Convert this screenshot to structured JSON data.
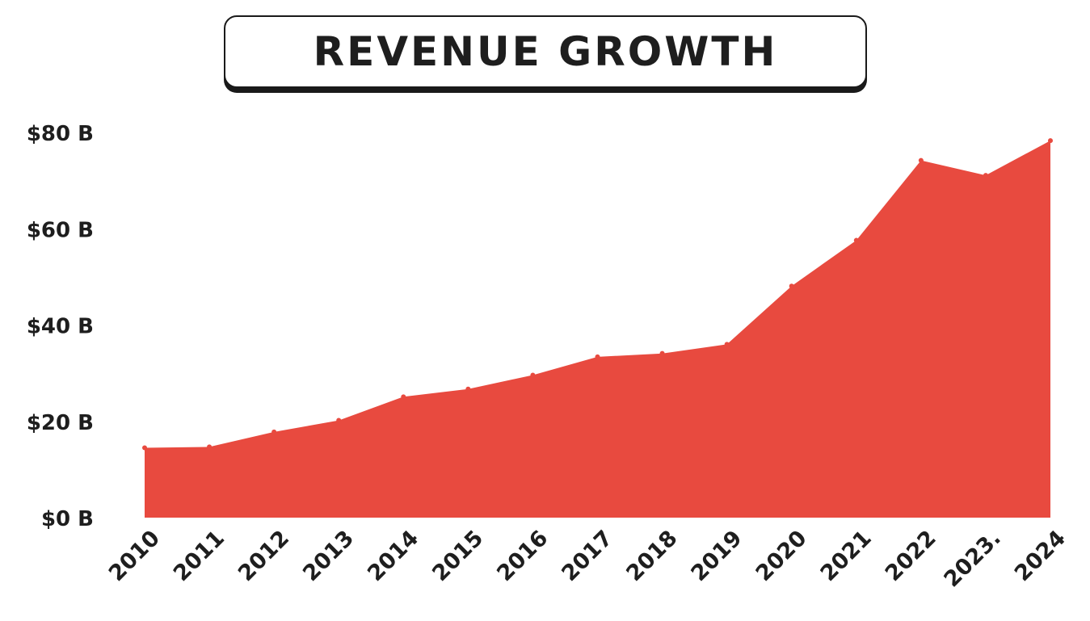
{
  "chart_data": {
    "type": "area",
    "title": "REVENUE GROWTH",
    "xlabel": "",
    "ylabel": "",
    "categories": [
      "2010",
      "2011",
      "2012",
      "2013",
      "2014",
      "2015",
      "2016",
      "2017",
      "2018",
      "2019",
      "2020",
      "2021",
      "2022",
      "2023.",
      "2024"
    ],
    "values": [
      14.5,
      14.7,
      17.8,
      20.2,
      25.1,
      26.7,
      29.6,
      33.4,
      34.1,
      36.0,
      48.1,
      57.6,
      74.2,
      71.1,
      78.3
    ],
    "y_ticks": [
      "$0 B",
      "$20 B",
      "$40 B",
      "$60 B",
      "$80 B"
    ],
    "ylim": [
      0,
      80
    ],
    "grid": false,
    "legend": "none",
    "fill_color": "#e84a3f",
    "text_color": "#1e1e1e"
  }
}
